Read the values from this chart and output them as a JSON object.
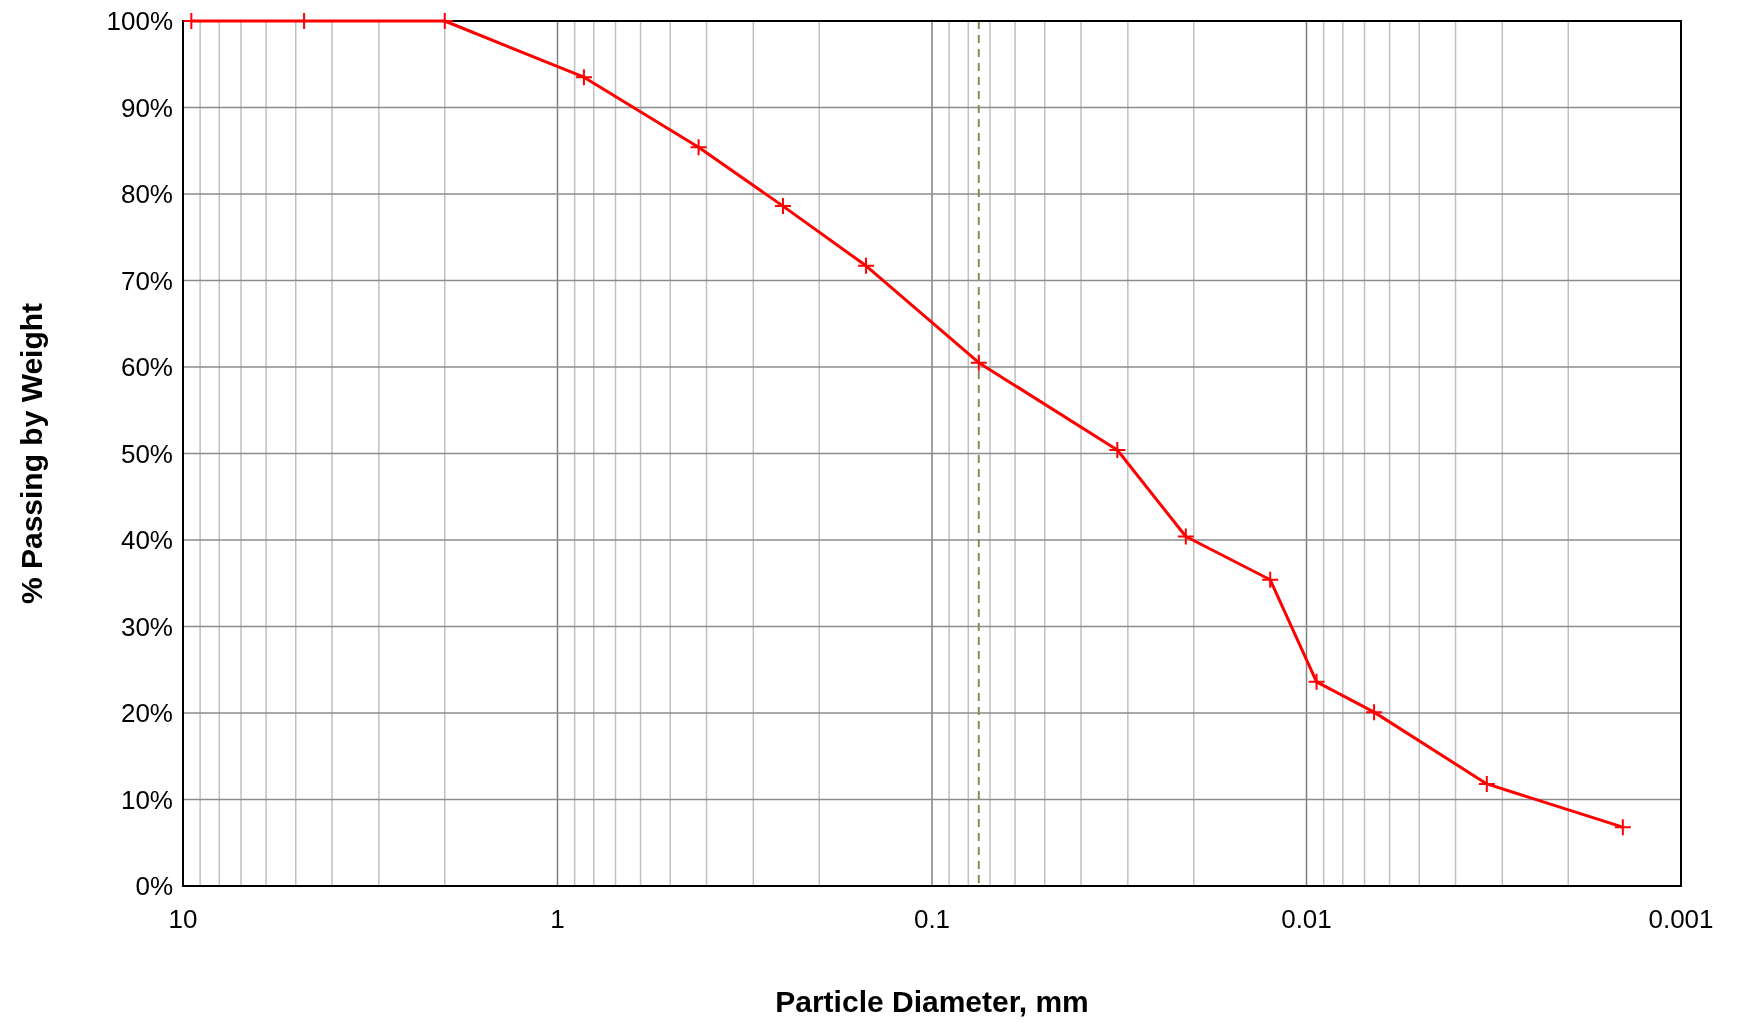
{
  "chart_data": {
    "type": "line",
    "xlabel": "Particle Diameter, mm",
    "ylabel": "% Passing by Weight",
    "log": "x",
    "xlim": [
      10,
      0.001
    ],
    "ylim": [
      0,
      100
    ],
    "xticks": [
      10,
      {
        "value": 9,
        "label": null
      },
      {
        "value": 8,
        "label": null
      },
      {
        "value": 7,
        "label": null
      },
      {
        "value": 6,
        "label": null
      },
      {
        "value": 5,
        "label": null
      },
      {
        "value": 4,
        "label": null
      },
      {
        "value": 3,
        "label": null
      },
      {
        "value": 2,
        "label": null
      },
      1,
      {
        "value": 0.9,
        "label": null
      },
      {
        "value": 0.8,
        "label": null
      },
      {
        "value": 0.7,
        "label": null
      },
      {
        "value": 0.6,
        "label": null
      },
      {
        "value": 0.5,
        "label": null
      },
      {
        "value": 0.4,
        "label": null
      },
      {
        "value": 0.3,
        "label": null
      },
      {
        "value": 0.2,
        "label": null
      },
      0.1,
      {
        "value": 0.09,
        "label": null
      },
      {
        "value": 0.08,
        "label": null
      },
      {
        "value": 0.07,
        "label": null
      },
      {
        "value": 0.06,
        "label": null
      },
      {
        "value": 0.05,
        "label": null
      },
      {
        "value": 0.04,
        "label": null
      },
      {
        "value": 0.03,
        "label": null
      },
      {
        "value": 0.02,
        "label": null
      },
      0.01,
      {
        "value": 0.009,
        "label": null
      },
      {
        "value": 0.008,
        "label": null
      },
      {
        "value": 0.007,
        "label": null
      },
      {
        "value": 0.006,
        "label": null
      },
      {
        "value": 0.005,
        "label": null
      },
      {
        "value": 0.004,
        "label": null
      },
      {
        "value": 0.003,
        "label": null
      },
      {
        "value": 0.002,
        "label": null
      },
      0.001
    ],
    "yticks": [
      {
        "value": 0,
        "label": "0%"
      },
      {
        "value": 10,
        "label": "10%"
      },
      {
        "value": 20,
        "label": "20%"
      },
      {
        "value": 30,
        "label": "30%"
      },
      {
        "value": 40,
        "label": "40%"
      },
      {
        "value": 50,
        "label": "50%"
      },
      {
        "value": 60,
        "label": "60%"
      },
      {
        "value": 70,
        "label": "70%"
      },
      {
        "value": 80,
        "label": "80%"
      },
      {
        "value": 90,
        "label": "90%"
      },
      {
        "value": 100,
        "label": "100%"
      }
    ],
    "grid": true,
    "marker": "cross",
    "line_style": "solid",
    "x": [
      9.5,
      4.75,
      2.0,
      0.85,
      0.42,
      0.25,
      0.15,
      0.075,
      0.032,
      0.021,
      0.0125,
      0.0094,
      0.0066,
      0.0033,
      0.00143
    ],
    "series": [
      {
        "color": "#ff0000",
        "values": [
          100,
          100,
          100,
          93.5,
          85.4,
          78.6,
          71.7,
          60.5,
          50.4,
          40.4,
          35.4,
          23.6,
          20.1,
          11.8,
          6.8
        ]
      }
    ],
    "ref_lines": [
      {
        "axis": "x",
        "value": 0.075,
        "color": "#8b8b5a",
        "line_style": "dashed"
      }
    ]
  }
}
